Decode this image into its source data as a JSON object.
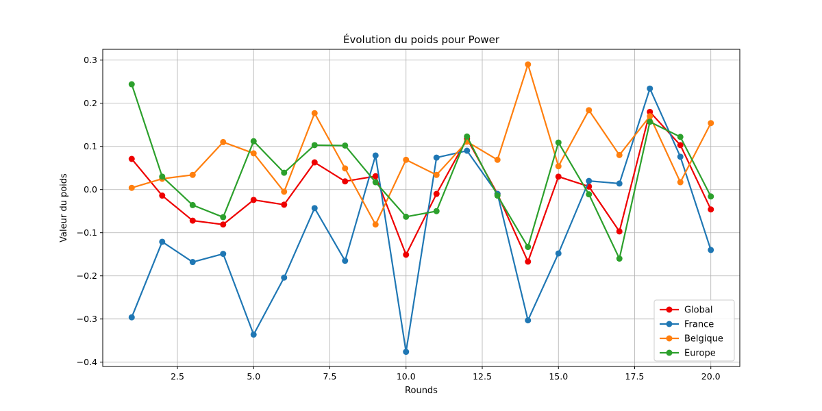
{
  "chart_data": {
    "type": "line",
    "title": "Évolution du poids pour Power",
    "xlabel": "Rounds",
    "ylabel": "Valeur du poids",
    "xlim": [
      0.05,
      20.95
    ],
    "ylim": [
      -0.41,
      0.325
    ],
    "xticks": [
      2.5,
      5.0,
      7.5,
      10.0,
      12.5,
      15.0,
      17.5,
      20.0
    ],
    "xtick_labels": [
      "2.5",
      "5.0",
      "7.5",
      "10.0",
      "12.5",
      "15.0",
      "17.5",
      "20.0"
    ],
    "yticks": [
      -0.4,
      -0.3,
      -0.2,
      -0.1,
      0.0,
      0.1,
      0.2,
      0.3
    ],
    "ytick_labels": [
      "−0.4",
      "−0.3",
      "−0.2",
      "−0.1",
      "0.0",
      "0.1",
      "0.2",
      "0.3"
    ],
    "grid": true,
    "legend_position": "lower-right",
    "x": [
      1,
      2,
      3,
      4,
      5,
      6,
      7,
      8,
      9,
      10,
      11,
      12,
      13,
      14,
      15,
      16,
      17,
      18,
      19,
      20
    ],
    "series": [
      {
        "name": "Global",
        "color": "#ee0000",
        "values": [
          0.071,
          -0.014,
          -0.072,
          -0.081,
          -0.024,
          -0.035,
          0.063,
          0.019,
          0.031,
          -0.151,
          -0.01,
          0.118,
          -0.01,
          -0.167,
          0.03,
          0.007,
          -0.097,
          0.18,
          0.103,
          -0.046
        ]
      },
      {
        "name": "France",
        "color": "#1f77b4",
        "values": [
          -0.296,
          -0.121,
          -0.168,
          -0.149,
          -0.336,
          -0.204,
          -0.043,
          -0.165,
          0.079,
          -0.376,
          0.074,
          0.09,
          -0.01,
          -0.303,
          -0.148,
          0.02,
          0.014,
          0.234,
          0.076,
          -0.14
        ]
      },
      {
        "name": "Belgique",
        "color": "#ff7f0e",
        "values": [
          0.004,
          0.025,
          0.034,
          0.11,
          0.084,
          -0.005,
          0.177,
          0.049,
          -0.081,
          0.069,
          0.034,
          0.111,
          0.069,
          0.29,
          0.054,
          0.184,
          0.08,
          0.17,
          0.017,
          0.154
        ]
      },
      {
        "name": "Europe",
        "color": "#2ca02c",
        "values": [
          0.244,
          0.03,
          -0.036,
          -0.064,
          0.112,
          0.039,
          0.103,
          0.102,
          0.017,
          -0.063,
          -0.05,
          0.123,
          -0.014,
          -0.133,
          0.109,
          -0.011,
          -0.16,
          0.157,
          0.122,
          -0.016
        ]
      }
    ]
  }
}
